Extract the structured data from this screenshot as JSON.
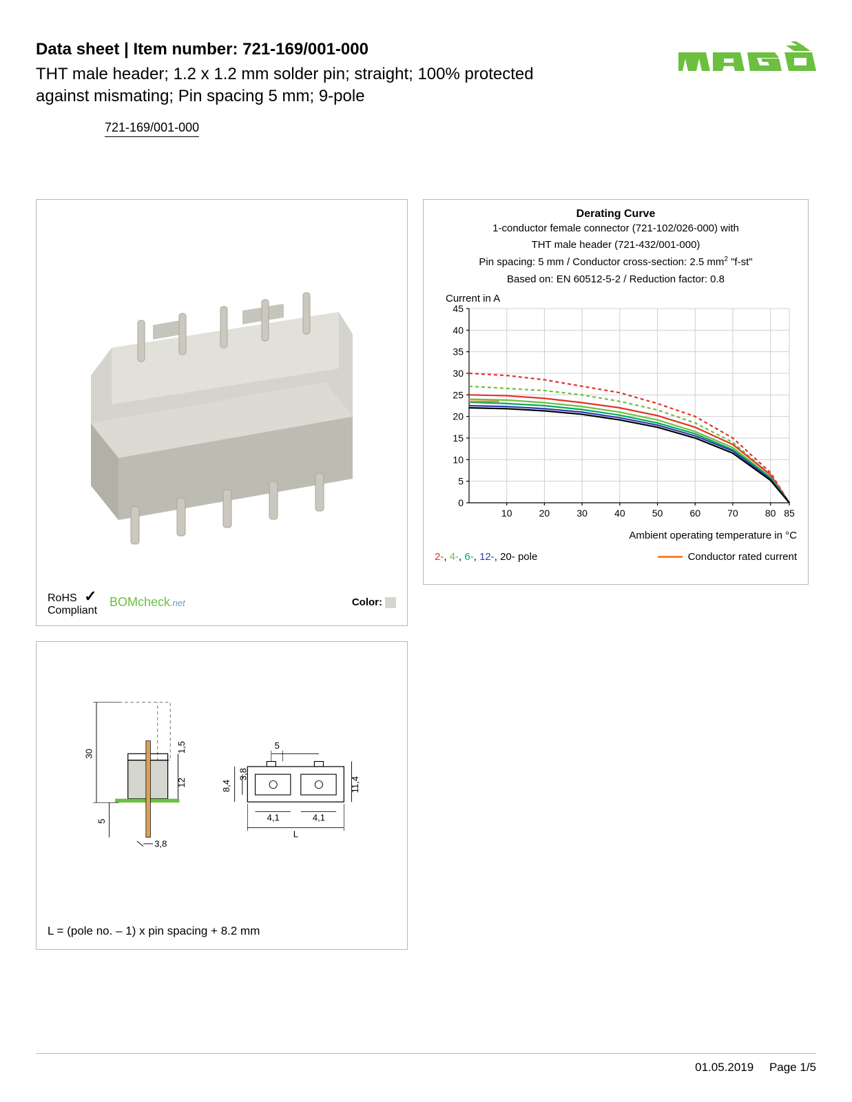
{
  "header": {
    "title_prefix": "Data sheet",
    "title_sep": "  |  ",
    "title_label": "Item number:",
    "item_number": "721-169/001-000",
    "description": "THT male header; 1.2 x 1.2 mm solder pin; straight; 100% protected against mismating; Pin spacing 5 mm; 9-pole",
    "link_text": "721-169/001-000"
  },
  "logo": {
    "text": "WAGO",
    "color": "#6cbf3f"
  },
  "product_panel": {
    "rohs_line1": "RoHS",
    "rohs_line2": "Compliant",
    "bomcheck_text": "BOMcheck",
    "bomcheck_suffix": ".net",
    "color_label": "Color:",
    "color_swatch": "#d6d6d0",
    "connector_body_color": "#d5d4cc",
    "connector_shadow_color": "#b9b8b0",
    "connector_pin_color": "#c9c7bf"
  },
  "chart_panel": {
    "title": "Derating Curve",
    "sub1": "1-conductor female connector (721-102/026-000) with",
    "sub2": "THT male header (721-432/001-000)",
    "sub3_prefix": "Pin spacing: 5 mm / Conductor cross-section: 2.5 mm",
    "sub3_sup": "2",
    "sub3_suffix": " \"f-st\"",
    "sub4": "Based on: EN 60512-5-2 / Reduction factor: 0.8",
    "y_label": "Current in A",
    "x_label": "Ambient operating temperature in °C",
    "legend_poles_text": "2-, 4-, 6-, 12-, 20- pole",
    "legend_rated_text": "Conductor rated current",
    "chart": {
      "type": "line",
      "xlim": [
        0,
        85
      ],
      "ylim": [
        0,
        45
      ],
      "xticks": [
        10,
        20,
        30,
        40,
        50,
        60,
        70,
        80,
        85
      ],
      "yticks": [
        0,
        5,
        10,
        15,
        20,
        25,
        30,
        35,
        40,
        45
      ],
      "grid_color": "#cfcfcf",
      "background_color": "#ffffff",
      "axis_color": "#000000",
      "label_fontsize": 14,
      "series": [
        {
          "name": "2-pole-dash",
          "color": "#e4312b",
          "dash": true,
          "points": [
            [
              0,
              30
            ],
            [
              10,
              29.5
            ],
            [
              20,
              28.5
            ],
            [
              30,
              27
            ],
            [
              40,
              25.5
            ],
            [
              50,
              23
            ],
            [
              60,
              20
            ],
            [
              70,
              15
            ],
            [
              80,
              7
            ],
            [
              85,
              0
            ]
          ]
        },
        {
          "name": "4-pole-dash",
          "color": "#6cbf3f",
          "dash": true,
          "points": [
            [
              0,
              27
            ],
            [
              10,
              26.5
            ],
            [
              20,
              26
            ],
            [
              30,
              25
            ],
            [
              40,
              23.5
            ],
            [
              50,
              21.5
            ],
            [
              60,
              18.5
            ],
            [
              70,
              14
            ],
            [
              80,
              6.5
            ],
            [
              85,
              0
            ]
          ]
        },
        {
          "name": "2-pole",
          "color": "#e4312b",
          "dash": false,
          "points": [
            [
              0,
              25
            ],
            [
              10,
              24.8
            ],
            [
              20,
              24.2
            ],
            [
              30,
              23.2
            ],
            [
              40,
              22
            ],
            [
              50,
              20.2
            ],
            [
              60,
              17.5
            ],
            [
              70,
              13.5
            ],
            [
              80,
              6.5
            ],
            [
              85,
              0
            ]
          ]
        },
        {
          "name": "4-pole",
          "color": "#6cbf3f",
          "dash": false,
          "points": [
            [
              0,
              24
            ],
            [
              10,
              23.8
            ],
            [
              20,
              23.2
            ],
            [
              30,
              22.3
            ],
            [
              40,
              21
            ],
            [
              50,
              19.2
            ],
            [
              60,
              16.5
            ],
            [
              70,
              12.8
            ],
            [
              80,
              6
            ],
            [
              85,
              0
            ]
          ]
        },
        {
          "name": "6-pole",
          "color": "#00a95c",
          "dash": false,
          "points": [
            [
              0,
              23.3
            ],
            [
              10,
              23
            ],
            [
              20,
              22.5
            ],
            [
              30,
              21.6
            ],
            [
              40,
              20.3
            ],
            [
              50,
              18.5
            ],
            [
              60,
              16
            ],
            [
              70,
              12.3
            ],
            [
              80,
              5.8
            ],
            [
              85,
              0
            ]
          ]
        },
        {
          "name": "12-pole",
          "color": "#2e3ab2",
          "dash": false,
          "points": [
            [
              0,
              22.5
            ],
            [
              10,
              22.3
            ],
            [
              20,
              21.8
            ],
            [
              30,
              21
            ],
            [
              40,
              19.7
            ],
            [
              50,
              18
            ],
            [
              60,
              15.5
            ],
            [
              70,
              12
            ],
            [
              80,
              5.5
            ],
            [
              85,
              0
            ]
          ]
        },
        {
          "name": "20-pole",
          "color": "#000000",
          "dash": false,
          "points": [
            [
              0,
              22
            ],
            [
              10,
              21.8
            ],
            [
              20,
              21.3
            ],
            [
              30,
              20.5
            ],
            [
              40,
              19.2
            ],
            [
              50,
              17.5
            ],
            [
              60,
              15
            ],
            [
              70,
              11.5
            ],
            [
              80,
              5.2
            ],
            [
              85,
              0
            ]
          ]
        },
        {
          "name": "rated",
          "color": "#ff7f27",
          "dash": false,
          "points": [
            [
              0,
              23.5
            ],
            [
              8,
              23.5
            ]
          ]
        }
      ],
      "legend_pole_colors": {
        "2": "#e4312b",
        "4": "#6cbf3f",
        "6": "#00a95c",
        "12": "#2e3ab2",
        "20": "#000000"
      },
      "rated_color": "#ff7f27"
    }
  },
  "drawing_panel": {
    "formula": "L = (pole no. – 1) x pin spacing + 8.2 mm",
    "dimensions": {
      "height_total": "30",
      "upper_gap": "1,5",
      "body_height": "12",
      "pin_below": "5",
      "pin_width": "3,8",
      "top_pitch": "5",
      "front_body_h": "8,4",
      "front_inner_h": "3,8",
      "front_outer_h": "11,4",
      "slot_w": "4,1",
      "length_label": "L"
    },
    "colors": {
      "outline": "#000000",
      "body_fill": "#d6d6d0",
      "pin_fill": "#d8a05a",
      "pcb_fill": "#6cbf3f",
      "dash": "#8a8a8a"
    }
  },
  "footer": {
    "date": "01.05.2019",
    "page": "Page 1/5"
  }
}
